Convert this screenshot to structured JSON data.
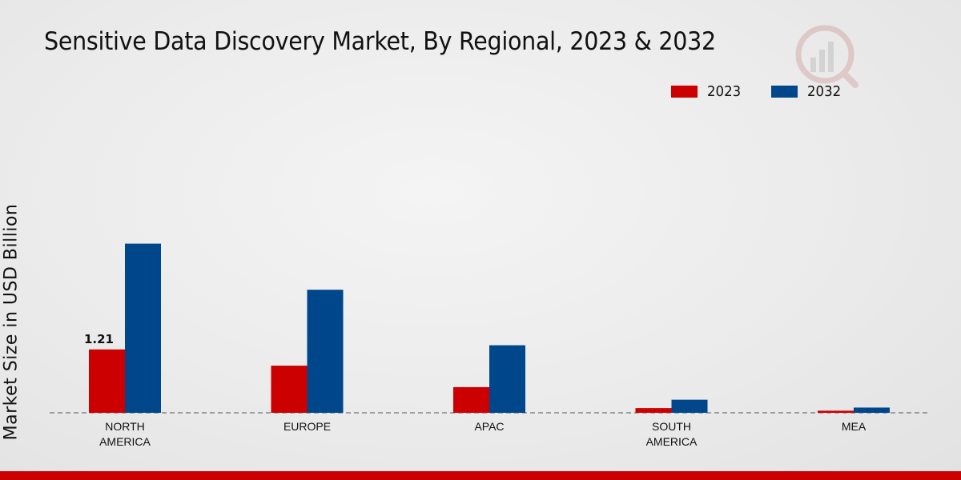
{
  "chart_data": {
    "type": "bar",
    "title": "Sensitive Data Discovery Market, By Regional, 2023 & 2032",
    "xlabel": "",
    "ylabel": "Market Size in USD Billion",
    "categories": [
      "NORTH\nAMERICA",
      "EUROPE",
      "APAC",
      "SOUTH\nAMERICA",
      "MEA"
    ],
    "series": [
      {
        "name": "2023",
        "color": "#cc0000",
        "values": [
          1.21,
          0.9,
          0.49,
          0.09,
          0.04
        ]
      },
      {
        "name": "2032",
        "color": "#00468b",
        "values": [
          3.23,
          2.35,
          1.29,
          0.25,
          0.1
        ]
      }
    ],
    "data_labels": [
      {
        "series": "2023",
        "category_index": 0,
        "text": "1.21"
      }
    ],
    "ylim": [
      0,
      5.5
    ],
    "grid": false,
    "baseline": "dashed",
    "legend_position": "top-right"
  },
  "colors": {
    "accent_red": "#cc0000",
    "accent_blue": "#00468b"
  }
}
